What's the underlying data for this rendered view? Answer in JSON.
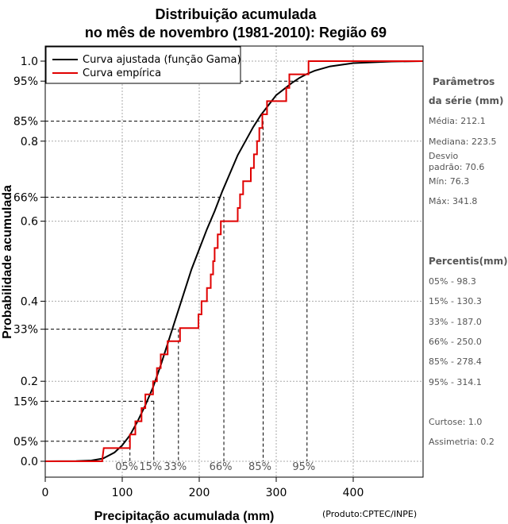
{
  "chart_data": {
    "type": "line",
    "title_line1": "Distribuição acumulada",
    "title_line2": "no mês de novembro (1981-2010): Região 69",
    "xlabel": "Precipitação acumulada (mm)",
    "ylabel": "Probabilidade acumulada",
    "credit": "(Produto:CPTEC/INPE)",
    "xlim": [
      0,
      490
    ],
    "ylim": [
      0,
      1
    ],
    "x_ticks": [
      0,
      100,
      200,
      300,
      400
    ],
    "x_tick_labels": [
      "0",
      "100",
      "200",
      "300",
      "400"
    ],
    "y_ticks": [
      0.0,
      0.2,
      0.4,
      0.6,
      0.8,
      1.0
    ],
    "y_tick_labels": [
      "0.0",
      "0.2",
      "0.4",
      "0.6",
      "0.8",
      "1.0"
    ],
    "y_percentile_labels": [
      {
        "p": 0.05,
        "label": "05%"
      },
      {
        "p": 0.15,
        "label": "15%"
      },
      {
        "p": 0.33,
        "label": "33%"
      },
      {
        "p": 0.66,
        "label": "66%"
      },
      {
        "p": 0.85,
        "label": "85%"
      },
      {
        "p": 0.95,
        "label": "95%"
      }
    ],
    "x_percentile_labels": [
      {
        "x": 110,
        "label": "05%"
      },
      {
        "x": 141,
        "label": "15%"
      },
      {
        "x": 173,
        "label": "33%"
      },
      {
        "x": 232,
        "label": "66%"
      },
      {
        "x": 283,
        "label": "85%"
      },
      {
        "x": 340,
        "label": "95%"
      }
    ],
    "fitted": {
      "name": "Curva ajustada (função Gama)",
      "color": "#000000",
      "points": [
        [
          0,
          0
        ],
        [
          40,
          0.0003
        ],
        [
          60,
          0.002
        ],
        [
          75,
          0.007
        ],
        [
          90,
          0.022
        ],
        [
          100,
          0.04
        ],
        [
          110,
          0.065
        ],
        [
          120,
          0.1
        ],
        [
          130,
          0.14
        ],
        [
          140,
          0.185
        ],
        [
          150,
          0.24
        ],
        [
          160,
          0.3
        ],
        [
          170,
          0.36
        ],
        [
          180,
          0.42
        ],
        [
          190,
          0.48
        ],
        [
          200,
          0.53
        ],
        [
          210,
          0.58
        ],
        [
          220,
          0.625
        ],
        [
          230,
          0.675
        ],
        [
          240,
          0.72
        ],
        [
          250,
          0.765
        ],
        [
          260,
          0.8
        ],
        [
          270,
          0.835
        ],
        [
          280,
          0.865
        ],
        [
          290,
          0.89
        ],
        [
          300,
          0.915
        ],
        [
          310,
          0.93
        ],
        [
          320,
          0.945
        ],
        [
          330,
          0.958
        ],
        [
          340,
          0.968
        ],
        [
          350,
          0.976
        ],
        [
          370,
          0.987
        ],
        [
          400,
          0.995
        ],
        [
          450,
          0.999
        ],
        [
          490,
          1.0
        ]
      ]
    },
    "empirical": {
      "name": "Curva empírica",
      "color": "#e00000",
      "points": [
        [
          0,
          0
        ],
        [
          74,
          0
        ],
        [
          74,
          0.003
        ],
        [
          76,
          0.033
        ],
        [
          110,
          0.033
        ],
        [
          110,
          0.067
        ],
        [
          117,
          0.067
        ],
        [
          117,
          0.1
        ],
        [
          125,
          0.1
        ],
        [
          125,
          0.133
        ],
        [
          130,
          0.133
        ],
        [
          130,
          0.167
        ],
        [
          140,
          0.167
        ],
        [
          140,
          0.2
        ],
        [
          145,
          0.2
        ],
        [
          145,
          0.233
        ],
        [
          150,
          0.233
        ],
        [
          150,
          0.267
        ],
        [
          159,
          0.267
        ],
        [
          159,
          0.3
        ],
        [
          175,
          0.3
        ],
        [
          175,
          0.333
        ],
        [
          199,
          0.333
        ],
        [
          199,
          0.367
        ],
        [
          203,
          0.367
        ],
        [
          203,
          0.4
        ],
        [
          210,
          0.4
        ],
        [
          210,
          0.433
        ],
        [
          215,
          0.433
        ],
        [
          215,
          0.467
        ],
        [
          218,
          0.467
        ],
        [
          218,
          0.5
        ],
        [
          220,
          0.5
        ],
        [
          220,
          0.533
        ],
        [
          224,
          0.533
        ],
        [
          224,
          0.567
        ],
        [
          228,
          0.567
        ],
        [
          228,
          0.6
        ],
        [
          250,
          0.6
        ],
        [
          250,
          0.633
        ],
        [
          253,
          0.633
        ],
        [
          253,
          0.667
        ],
        [
          257,
          0.667
        ],
        [
          257,
          0.7
        ],
        [
          267,
          0.7
        ],
        [
          267,
          0.733
        ],
        [
          271,
          0.733
        ],
        [
          271,
          0.767
        ],
        [
          275,
          0.767
        ],
        [
          275,
          0.8
        ],
        [
          278,
          0.8
        ],
        [
          278,
          0.833
        ],
        [
          282,
          0.833
        ],
        [
          282,
          0.867
        ],
        [
          288,
          0.867
        ],
        [
          288,
          0.9
        ],
        [
          313,
          0.9
        ],
        [
          313,
          0.933
        ],
        [
          317,
          0.933
        ],
        [
          317,
          0.967
        ],
        [
          342,
          0.967
        ],
        [
          342,
          1.0
        ],
        [
          490,
          1.0
        ]
      ]
    },
    "legend_position": "top-left"
  },
  "stats": {
    "params_head_1": "Parâmetros",
    "params_head_2": "da série (mm)",
    "media": "Média: 212.1",
    "mediana": "Mediana: 223.5",
    "desvio_1": "Desvio",
    "desvio_2": "padrão: 70.6",
    "min": "Mín: 76.3",
    "max": "Máx: 341.8",
    "percentis_head": "Percentis(mm)",
    "p05": "05% - 98.3",
    "p15": "15% - 130.3",
    "p33": "33% - 187.0",
    "p66": "66% - 250.0",
    "p85": "85% - 278.4",
    "p95": "95% - 314.1",
    "curtose": "Curtose: 1.0",
    "assimetria": "Assimetria: 0.2"
  }
}
